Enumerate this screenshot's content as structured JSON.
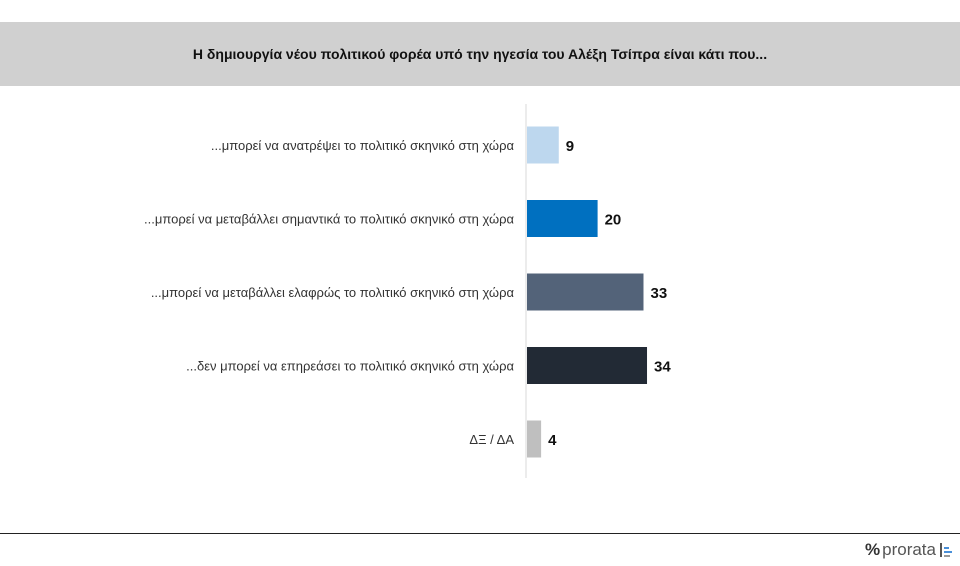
{
  "chart_data": {
    "type": "bar",
    "orientation": "horizontal",
    "title": "Η δημιουργία νέου πολιτικού φορέα υπό την ηγεσία του Αλέξη Τσίπρα είναι κάτι που...",
    "categories": [
      "...μπορεί να ανατρέψει το πολιτικό σκηνικό στη χώρα",
      "...μπορεί να μεταβάλλει σημαντικά το πολιτικό σκηνικό στη χώρα",
      "...μπορεί να μεταβάλλει ελαφρώς το πολιτικό σκηνικό στη χώρα",
      "...δεν μπορεί να επηρεάσει το πολιτικό σκηνικό στη χώρα",
      "ΔΞ / ΔΑ"
    ],
    "values": [
      9,
      20,
      33,
      34,
      4
    ],
    "colors": [
      "#bdd7ee",
      "#0070c0",
      "#536379",
      "#222a35",
      "#bfbfbf"
    ],
    "xlim": [
      0,
      100
    ],
    "grid": false
  },
  "logo": {
    "text": "prorata",
    "symbol": "%"
  }
}
